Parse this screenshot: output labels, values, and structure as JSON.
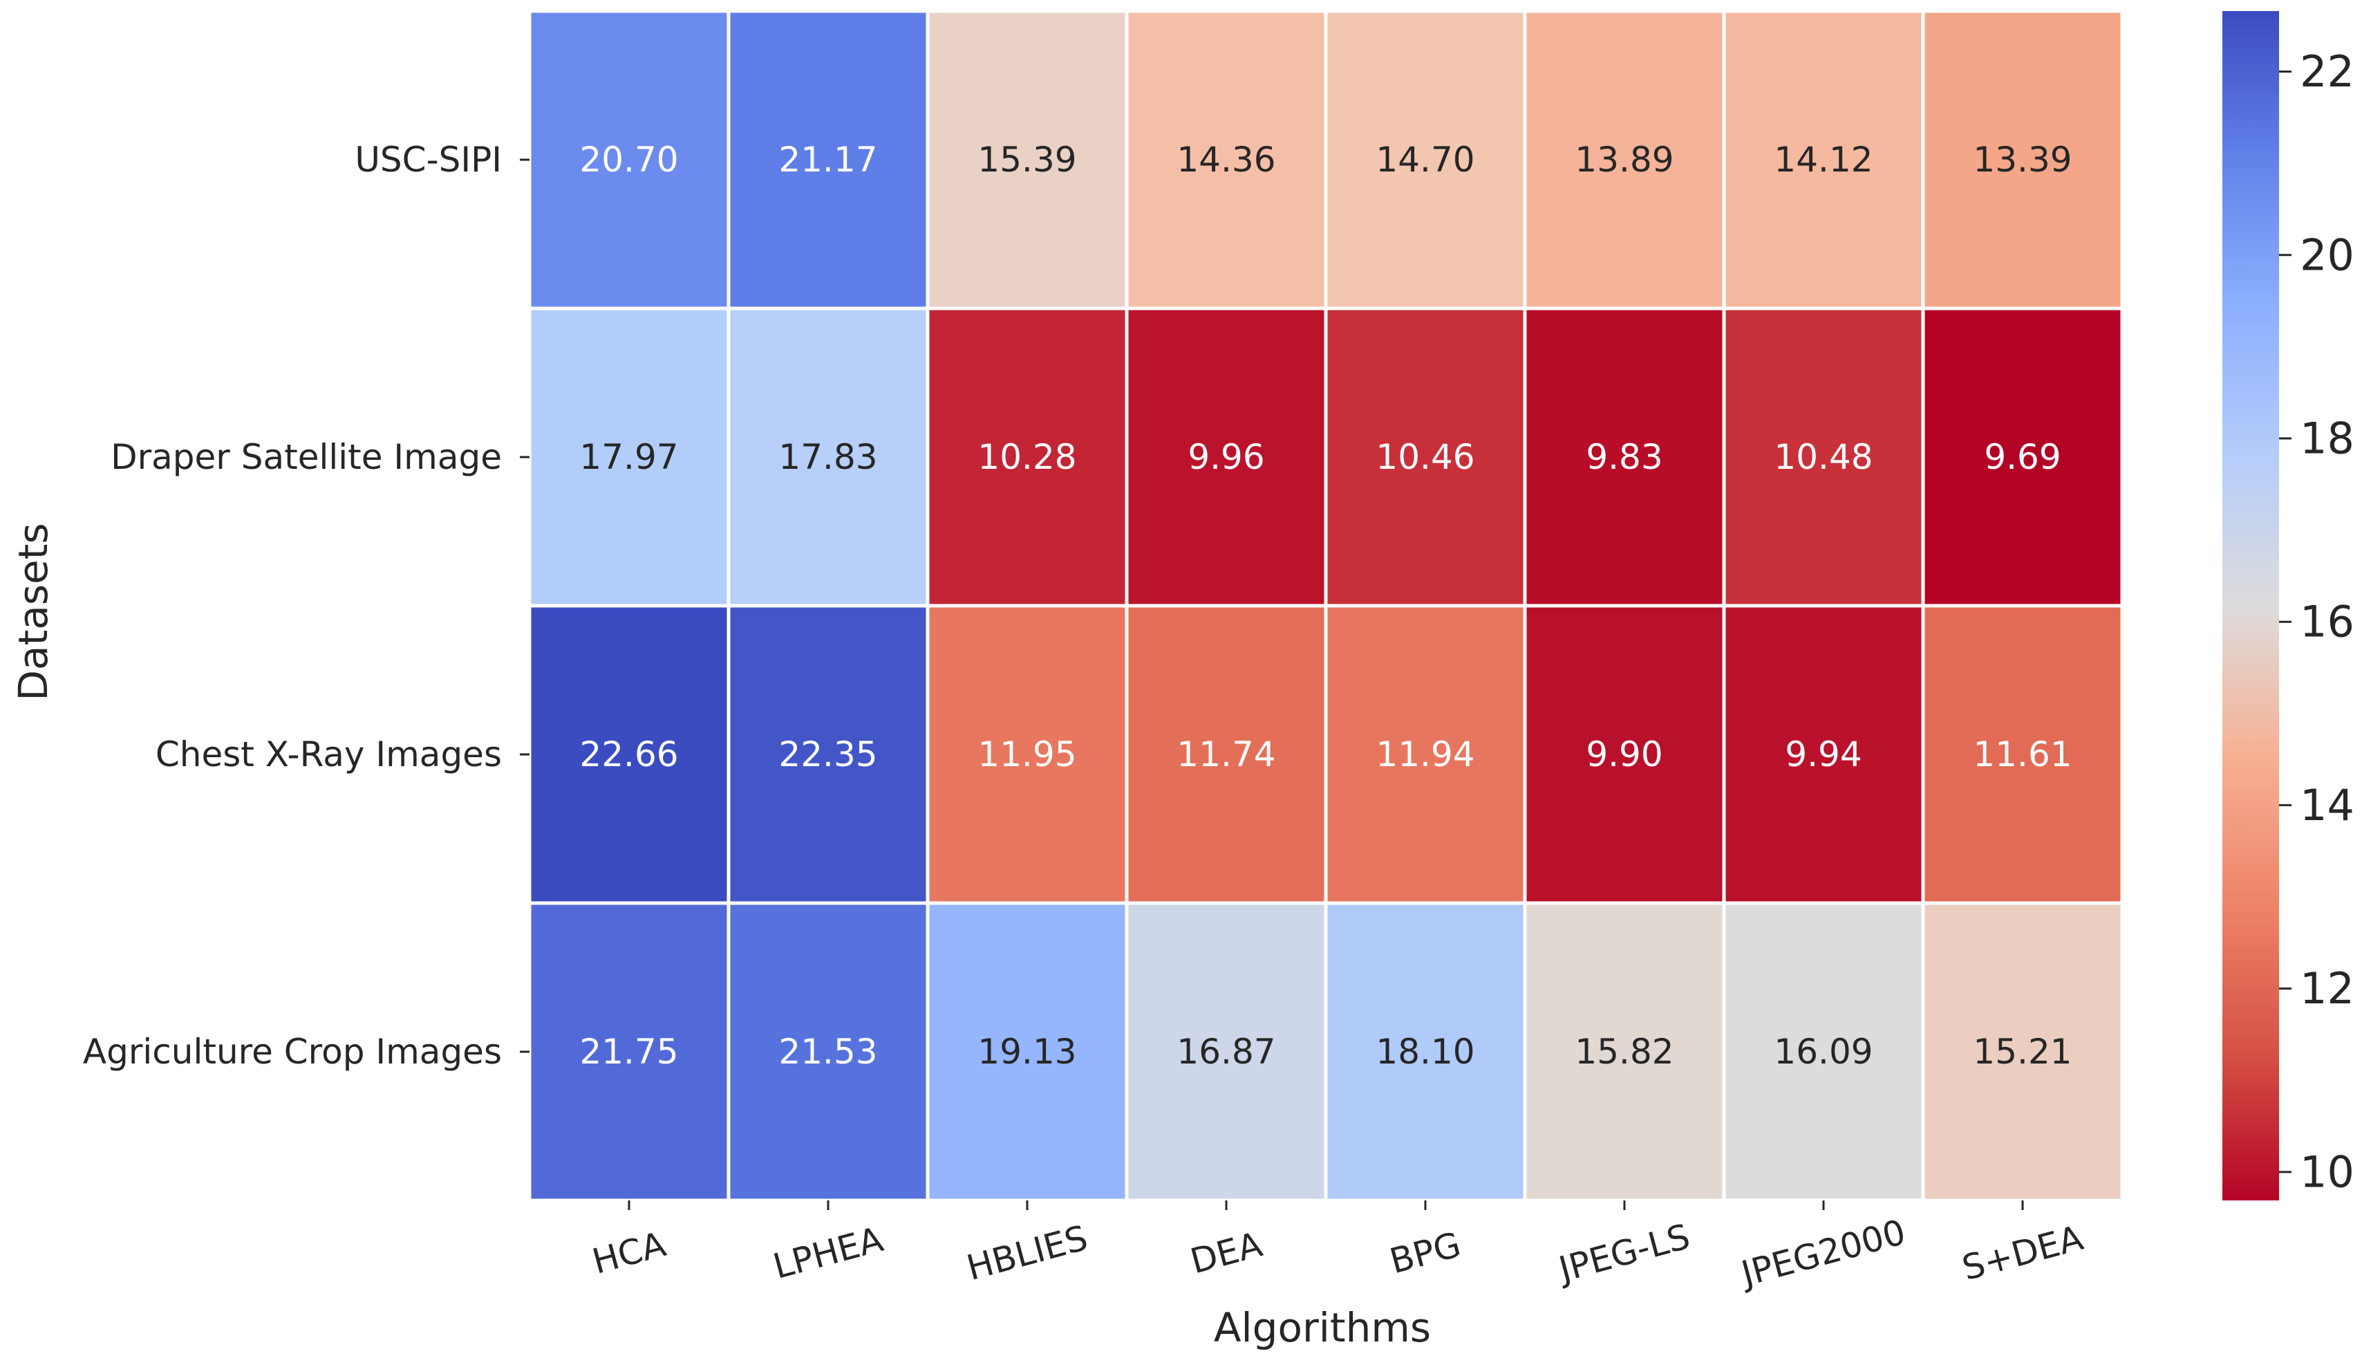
{
  "chart_data": {
    "type": "heatmap",
    "title": "",
    "xlabel": "Algorithms",
    "ylabel": "Datasets",
    "columns": [
      "HCA",
      "LPHEA",
      "HBLIES",
      "DEA",
      "BPG",
      "JPEG-LS",
      "JPEG2000",
      "S+DEA"
    ],
    "rows": [
      "USC-SIPI",
      "Draper Satellite Image",
      "Chest X-Ray Images",
      "Agriculture Crop Images"
    ],
    "values": [
      [
        20.7,
        21.17,
        15.39,
        14.36,
        14.7,
        13.89,
        14.12,
        13.39
      ],
      [
        17.97,
        17.83,
        10.28,
        9.96,
        10.46,
        9.83,
        10.48,
        9.69
      ],
      [
        22.66,
        22.35,
        11.95,
        11.74,
        11.94,
        9.9,
        9.94,
        11.61
      ],
      [
        21.75,
        21.53,
        19.13,
        16.87,
        18.1,
        15.82,
        16.09,
        15.21
      ]
    ],
    "value_format": "0.00",
    "colormap": "coolwarm_r",
    "vmin": 9.69,
    "vmax": 22.66,
    "colorbar": {
      "ticks": [
        10,
        12,
        14,
        16,
        18,
        20,
        22
      ],
      "tick_labels": [
        "10",
        "12",
        "14",
        "16",
        "18",
        "20",
        "22"
      ]
    }
  }
}
